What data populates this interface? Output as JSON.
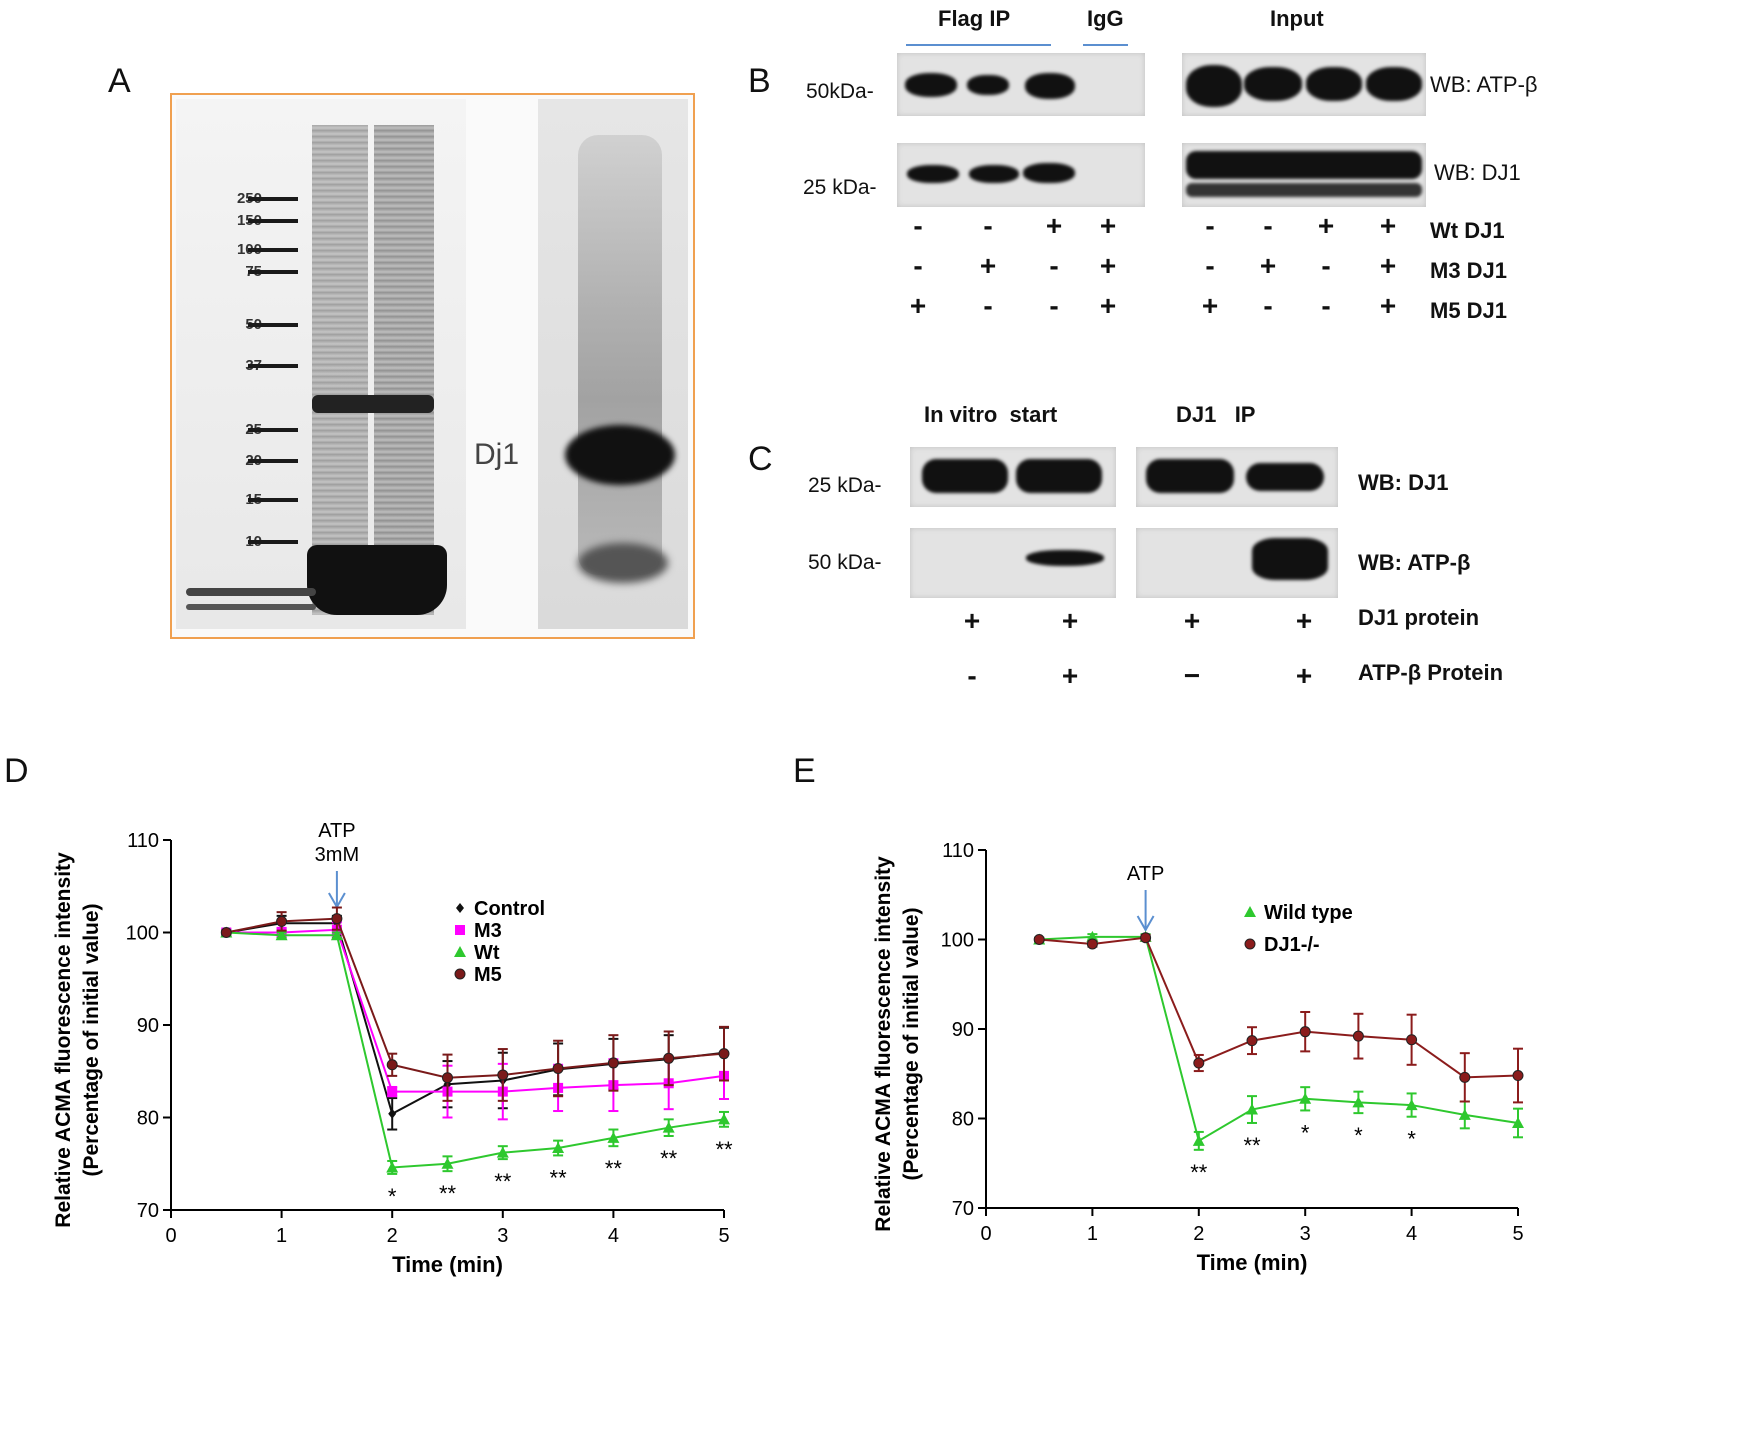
{
  "panelA": {
    "letter": "A",
    "markers": [
      "250",
      "150",
      "100",
      "75",
      "50",
      "37",
      "25",
      "20",
      "15",
      "10"
    ],
    "band_label": "Dj1"
  },
  "panelB": {
    "letter": "B",
    "headers": {
      "flag_ip": "Flag IP",
      "igg": "IgG",
      "input": "Input"
    },
    "mw": [
      "50kDa-",
      "25 kDa-"
    ],
    "wb": [
      "WB: ATP-β",
      "WB: DJ1"
    ],
    "rows": [
      {
        "label": "Wt DJ1",
        "signs": [
          "-",
          "-",
          "+",
          "+",
          "-",
          "-",
          "+",
          "+"
        ]
      },
      {
        "label": "M3 DJ1",
        "signs": [
          "-",
          "+",
          "-",
          "+",
          "-",
          "+",
          "-",
          "+"
        ]
      },
      {
        "label": "M5 DJ1",
        "signs": [
          "+",
          "-",
          "-",
          "+",
          "+",
          "-",
          "-",
          "+"
        ]
      }
    ]
  },
  "panelC": {
    "letter": "C",
    "headers": {
      "in_vitro": "In vitro  start",
      "dj1_ip": "DJ1   IP"
    },
    "mw": [
      "25 kDa-",
      "50 kDa-"
    ],
    "wb": [
      "WB: DJ1",
      "WB: ATP-β"
    ],
    "rows": [
      {
        "label": "DJ1 protein",
        "signs": [
          "+",
          "+",
          "+",
          "+"
        ]
      },
      {
        "label": "ATP-β Protein",
        "signs": [
          "-",
          "+",
          "−",
          "+"
        ]
      }
    ]
  },
  "chart_data": [
    {
      "panel": "D",
      "type": "line",
      "xlabel": "Time (min)",
      "ylabel": "Relative ACMA fluorescence intensity",
      "ylabel2": "(Percentage of initial value)",
      "xlim": [
        0,
        5
      ],
      "ylim": [
        70,
        110
      ],
      "xticks": [
        0,
        1,
        2,
        3,
        4,
        5
      ],
      "yticks": [
        70,
        80,
        90,
        100,
        110
      ],
      "annotation": [
        "ATP",
        "3mM"
      ],
      "annotation_x": 1.5,
      "legend_position": "top-right",
      "series": [
        {
          "name": "Control",
          "color": "#111111",
          "marker": "diamond",
          "x": [
            0.5,
            1,
            1.5,
            2,
            2.5,
            3,
            3.5,
            4,
            4.5,
            5
          ],
          "y": [
            100,
            101,
            101,
            80.4,
            83.6,
            84,
            85.2,
            85.8,
            86.3,
            87
          ],
          "err": [
            0.3,
            0.8,
            0.8,
            1.7,
            2.5,
            3,
            2.8,
            2.7,
            2.6,
            2.7
          ]
        },
        {
          "name": "M3",
          "color": "#ff00ff",
          "marker": "square",
          "x": [
            0.5,
            1,
            1.5,
            2,
            2.5,
            3,
            3.5,
            4,
            4.5,
            5
          ],
          "y": [
            100,
            100,
            100.3,
            82.8,
            82.8,
            82.8,
            83.2,
            83.5,
            83.7,
            84.5
          ],
          "err": [
            0.2,
            0.5,
            0.8,
            0.5,
            2.8,
            3,
            2.5,
            2.8,
            2.8,
            2.5
          ]
        },
        {
          "name": "Wt",
          "color": "#2ec82e",
          "marker": "triangle",
          "x": [
            0.5,
            1,
            1.5,
            2,
            2.5,
            3,
            3.5,
            4,
            4.5,
            5
          ],
          "y": [
            100,
            99.7,
            99.7,
            74.6,
            75,
            76.2,
            76.7,
            77.8,
            78.9,
            79.8
          ],
          "err": [
            0.2,
            0.3,
            0.3,
            0.7,
            0.8,
            0.7,
            0.8,
            0.9,
            0.9,
            0.8
          ]
        },
        {
          "name": "M5",
          "color": "#7a1a1a",
          "marker": "circle",
          "x": [
            0.5,
            1,
            1.5,
            2,
            2.5,
            3,
            3.5,
            4,
            4.5,
            5
          ],
          "y": [
            100,
            101.2,
            101.5,
            85.7,
            84.3,
            84.6,
            85.3,
            85.9,
            86.4,
            86.9
          ],
          "err": [
            0.2,
            1,
            1.2,
            1.2,
            2.5,
            2.8,
            3,
            3,
            2.9,
            2.9
          ]
        }
      ],
      "significance": [
        {
          "x": 2,
          "text": "*"
        },
        {
          "x": 2.5,
          "text": "**"
        },
        {
          "x": 3,
          "text": "**"
        },
        {
          "x": 3.5,
          "text": "**"
        },
        {
          "x": 4,
          "text": "**"
        },
        {
          "x": 4.5,
          "text": "**"
        },
        {
          "x": 5,
          "text": "**"
        }
      ]
    },
    {
      "panel": "E",
      "type": "line",
      "xlabel": "Time (min)",
      "ylabel": "Relative ACMA fluorescence intensity",
      "ylabel2": "(Percentage of initial value)",
      "xlim": [
        0,
        5
      ],
      "ylim": [
        70,
        110
      ],
      "xticks": [
        0,
        1,
        2,
        3,
        4,
        5
      ],
      "yticks": [
        70,
        80,
        90,
        100,
        110
      ],
      "annotation": [
        "ATP"
      ],
      "annotation_x": 1.5,
      "legend_position": "top-right",
      "series": [
        {
          "name": "Wild type",
          "color": "#2ec82e",
          "marker": "triangle",
          "x": [
            0.5,
            1,
            1.5,
            2,
            2.5,
            3,
            3.5,
            4,
            4.5,
            5
          ],
          "y": [
            100,
            100.3,
            100.3,
            77.5,
            81,
            82.2,
            81.8,
            81.5,
            80.4,
            79.5
          ],
          "err": [
            0.2,
            0.3,
            0.3,
            1,
            1.5,
            1.3,
            1.2,
            1.3,
            1.5,
            1.6
          ]
        },
        {
          "name": "DJ1-/-",
          "color": "#8b1c1c",
          "marker": "circle",
          "x": [
            0.5,
            1,
            1.5,
            2,
            2.5,
            3,
            3.5,
            4,
            4.5,
            5
          ],
          "y": [
            100,
            99.5,
            100.2,
            86.2,
            88.7,
            89.7,
            89.2,
            88.8,
            84.6,
            84.8
          ],
          "err": [
            0.2,
            0.3,
            0.3,
            0.9,
            1.5,
            2.2,
            2.5,
            2.8,
            2.7,
            3
          ]
        }
      ],
      "significance": [
        {
          "x": 2,
          "text": "**"
        },
        {
          "x": 2.5,
          "text": "**"
        },
        {
          "x": 3,
          "text": "*"
        },
        {
          "x": 3.5,
          "text": "*"
        },
        {
          "x": 4,
          "text": "*"
        }
      ]
    }
  ]
}
